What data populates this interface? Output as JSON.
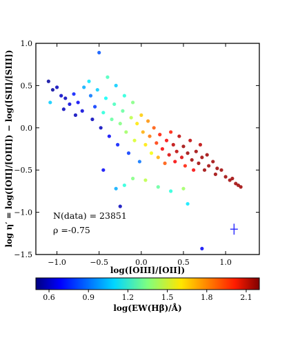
{
  "chart_data": {
    "type": "scatter",
    "xlabel": "log([OIII]/[OII])",
    "ylabel": "log η′ = log([OII]/[OIII]) − log([SII]/[SIII])",
    "xlim": [
      -1.25,
      1.4
    ],
    "ylim": [
      -1.5,
      1.0
    ],
    "xticks": [
      -1.0,
      -0.5,
      0.0,
      0.5,
      1.0
    ],
    "xtick_labels": [
      "−1.0",
      "−0.5",
      "0.0",
      "0.5",
      "1.0"
    ],
    "yticks": [
      -1.5,
      -1.0,
      -0.5,
      0.0,
      0.5,
      1.0
    ],
    "ytick_labels": [
      "−1.5",
      "−1.0",
      "−0.5",
      "0.0",
      "0.5",
      "1.0"
    ],
    "annotations": [
      "N(data) = 23851",
      "ρ =-0.75"
    ],
    "error_bar": {
      "x": 1.1,
      "y": -1.2,
      "xerr": 0.045,
      "yerr": 0.065,
      "color": "#1a1aff"
    },
    "colorbar": {
      "label": "log(EW(Hβ)/Å)",
      "range": [
        0.5,
        2.2
      ],
      "ticks": [
        0.6,
        0.9,
        1.2,
        1.5,
        1.8,
        2.1
      ],
      "tick_labels": [
        "0.6",
        "0.9",
        "1.2",
        "1.5",
        "1.8",
        "2.1"
      ],
      "colormap": "jet",
      "orientation": "horizontal"
    },
    "grid": false,
    "points": [
      {
        "x": -1.1,
        "y": 0.55,
        "c": 0.55
      },
      {
        "x": -1.05,
        "y": 0.45,
        "c": 0.55
      },
      {
        "x": -1.0,
        "y": 0.48,
        "c": 0.6
      },
      {
        "x": -0.95,
        "y": 0.38,
        "c": 0.62
      },
      {
        "x": -1.08,
        "y": 0.3,
        "c": 1.05
      },
      {
        "x": -0.9,
        "y": 0.35,
        "c": 0.6
      },
      {
        "x": -0.85,
        "y": 0.28,
        "c": 0.65
      },
      {
        "x": -0.92,
        "y": 0.22,
        "c": 0.6
      },
      {
        "x": -0.8,
        "y": 0.4,
        "c": 0.75
      },
      {
        "x": -0.75,
        "y": 0.3,
        "c": 0.7
      },
      {
        "x": -0.78,
        "y": 0.15,
        "c": 0.6
      },
      {
        "x": -0.7,
        "y": 0.2,
        "c": 0.65
      },
      {
        "x": -0.68,
        "y": 0.48,
        "c": 1.0
      },
      {
        "x": -0.62,
        "y": 0.55,
        "c": 1.1
      },
      {
        "x": -0.6,
        "y": 0.38,
        "c": 0.9
      },
      {
        "x": -0.58,
        "y": 0.1,
        "c": 0.6
      },
      {
        "x": -0.55,
        "y": 0.25,
        "c": 0.8
      },
      {
        "x": -0.5,
        "y": 0.89,
        "c": 0.85
      },
      {
        "x": -0.52,
        "y": 0.45,
        "c": 1.05
      },
      {
        "x": -0.48,
        "y": 0.0,
        "c": 0.6
      },
      {
        "x": -0.45,
        "y": 0.18,
        "c": 1.2
      },
      {
        "x": -0.42,
        "y": 0.35,
        "c": 1.15
      },
      {
        "x": -0.4,
        "y": 0.6,
        "c": 1.25
      },
      {
        "x": -0.38,
        "y": -0.1,
        "c": 0.7
      },
      {
        "x": -0.35,
        "y": 0.1,
        "c": 1.3
      },
      {
        "x": -0.32,
        "y": 0.28,
        "c": 1.25
      },
      {
        "x": -0.3,
        "y": 0.5,
        "c": 1.05
      },
      {
        "x": -0.28,
        "y": -0.2,
        "c": 0.75
      },
      {
        "x": -0.25,
        "y": 0.05,
        "c": 1.35
      },
      {
        "x": -0.22,
        "y": 0.2,
        "c": 1.3
      },
      {
        "x": -0.2,
        "y": 0.38,
        "c": 1.2
      },
      {
        "x": -0.18,
        "y": -0.05,
        "c": 1.4
      },
      {
        "x": -0.15,
        "y": -0.3,
        "c": 0.8
      },
      {
        "x": -0.12,
        "y": 0.12,
        "c": 1.45
      },
      {
        "x": -0.1,
        "y": 0.3,
        "c": 1.35
      },
      {
        "x": -0.08,
        "y": -0.15,
        "c": 1.5
      },
      {
        "x": -0.05,
        "y": 0.05,
        "c": 1.6
      },
      {
        "x": -0.02,
        "y": -0.4,
        "c": 0.9
      },
      {
        "x": 0.0,
        "y": 0.15,
        "c": 1.65
      },
      {
        "x": 0.02,
        "y": -0.05,
        "c": 1.7
      },
      {
        "x": 0.05,
        "y": -0.2,
        "c": 1.6
      },
      {
        "x": 0.08,
        "y": 0.08,
        "c": 1.75
      },
      {
        "x": 0.1,
        "y": -0.1,
        "c": 1.8
      },
      {
        "x": 0.12,
        "y": -0.3,
        "c": 1.55
      },
      {
        "x": 0.15,
        "y": 0.0,
        "c": 1.85
      },
      {
        "x": 0.18,
        "y": -0.18,
        "c": 1.9
      },
      {
        "x": 0.2,
        "y": -0.35,
        "c": 1.7
      },
      {
        "x": 0.22,
        "y": -0.08,
        "c": 1.95
      },
      {
        "x": 0.25,
        "y": -0.25,
        "c": 2.0
      },
      {
        "x": 0.28,
        "y": -0.42,
        "c": 1.85
      },
      {
        "x": 0.3,
        "y": -0.15,
        "c": 2.0
      },
      {
        "x": 0.33,
        "y": -0.32,
        "c": 2.05
      },
      {
        "x": 0.35,
        "y": -0.05,
        "c": 1.95
      },
      {
        "x": 0.38,
        "y": -0.2,
        "c": 2.1
      },
      {
        "x": 0.4,
        "y": -0.4,
        "c": 2.0
      },
      {
        "x": 0.42,
        "y": -0.28,
        "c": 2.1
      },
      {
        "x": 0.45,
        "y": -0.1,
        "c": 2.1
      },
      {
        "x": 0.48,
        "y": -0.35,
        "c": 2.05
      },
      {
        "x": 0.5,
        "y": -0.22,
        "c": 2.15
      },
      {
        "x": 0.52,
        "y": -0.45,
        "c": 1.95
      },
      {
        "x": 0.55,
        "y": -0.3,
        "c": 2.15
      },
      {
        "x": 0.58,
        "y": -0.15,
        "c": 2.1
      },
      {
        "x": 0.6,
        "y": -0.38,
        "c": 2.15
      },
      {
        "x": 0.62,
        "y": -0.5,
        "c": 2.0
      },
      {
        "x": 0.65,
        "y": -0.28,
        "c": 2.15
      },
      {
        "x": 0.68,
        "y": -0.42,
        "c": 2.15
      },
      {
        "x": 0.7,
        "y": -0.2,
        "c": 2.1
      },
      {
        "x": 0.72,
        "y": -0.35,
        "c": 2.15
      },
      {
        "x": 0.75,
        "y": -0.5,
        "c": 2.15
      },
      {
        "x": 0.78,
        "y": -0.32,
        "c": 2.15
      },
      {
        "x": 0.8,
        "y": -0.45,
        "c": 2.15
      },
      {
        "x": 0.85,
        "y": -0.4,
        "c": 2.15
      },
      {
        "x": 0.88,
        "y": -0.55,
        "c": 2.15
      },
      {
        "x": 0.9,
        "y": -0.48,
        "c": 2.15
      },
      {
        "x": 0.95,
        "y": -0.5,
        "c": 2.15
      },
      {
        "x": 1.0,
        "y": -0.58,
        "c": 2.15
      },
      {
        "x": 1.05,
        "y": -0.62,
        "c": 2.15
      },
      {
        "x": 1.08,
        "y": -0.6,
        "c": 2.15
      },
      {
        "x": 1.12,
        "y": -0.66,
        "c": 2.15
      },
      {
        "x": 1.15,
        "y": -0.68,
        "c": 2.15
      },
      {
        "x": 1.18,
        "y": -0.7,
        "c": 2.15
      },
      {
        "x": -0.25,
        "y": -0.93,
        "c": 0.6
      },
      {
        "x": -0.45,
        "y": -0.5,
        "c": 0.7
      },
      {
        "x": -0.3,
        "y": -0.72,
        "c": 1.0
      },
      {
        "x": -0.2,
        "y": -0.68,
        "c": 1.2
      },
      {
        "x": -0.1,
        "y": -0.6,
        "c": 1.35
      },
      {
        "x": 0.05,
        "y": -0.62,
        "c": 1.45
      },
      {
        "x": 0.2,
        "y": -0.7,
        "c": 1.3
      },
      {
        "x": 0.35,
        "y": -0.75,
        "c": 1.2
      },
      {
        "x": 0.5,
        "y": -0.72,
        "c": 1.4
      },
      {
        "x": 0.55,
        "y": -0.9,
        "c": 1.1
      },
      {
        "x": 0.72,
        "y": -1.43,
        "c": 0.7
      }
    ]
  }
}
